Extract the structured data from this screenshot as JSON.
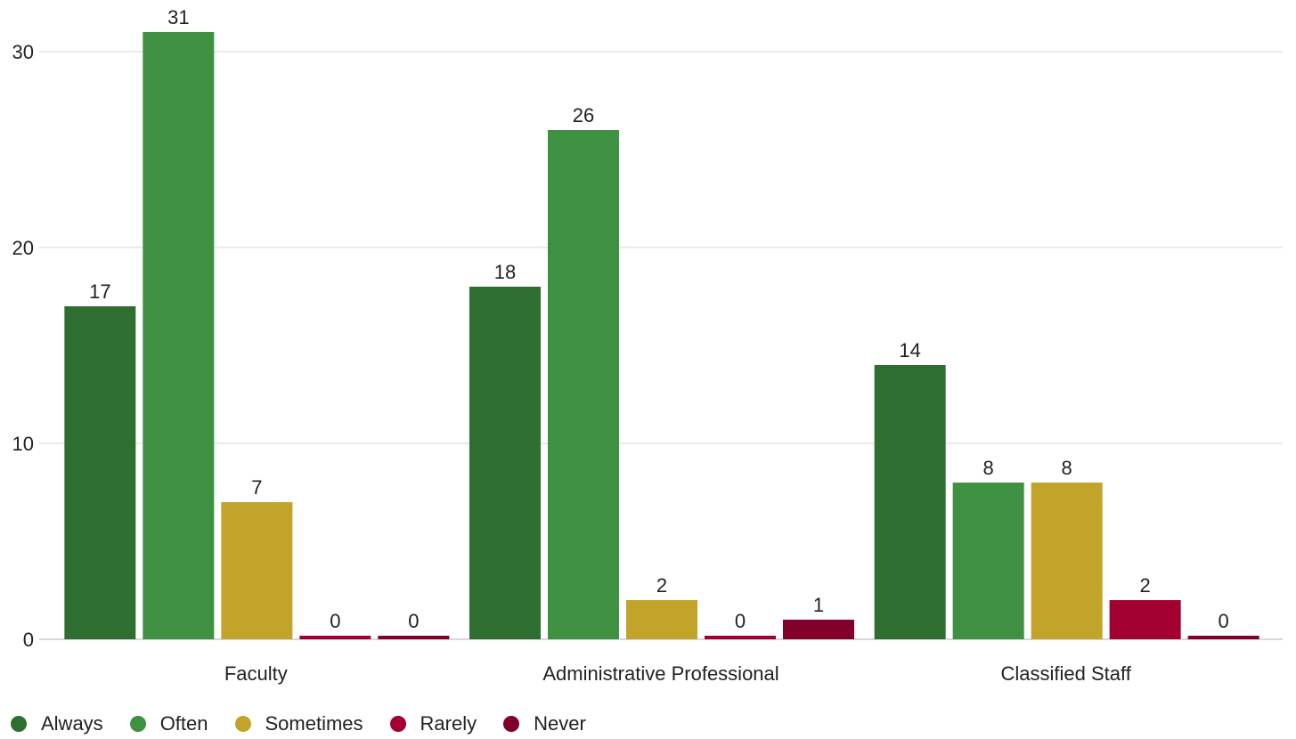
{
  "chart_data": {
    "type": "bar",
    "title": "",
    "xlabel": "",
    "ylabel": "",
    "categories": [
      "Faculty",
      "Administrative Professional",
      "Classified Staff"
    ],
    "series": [
      {
        "name": "Always",
        "color": "#2e6e31",
        "values": [
          17,
          18,
          14
        ]
      },
      {
        "name": "Often",
        "color": "#3e9140",
        "values": [
          31,
          26,
          8
        ]
      },
      {
        "name": "Sometimes",
        "color": "#c2a42a",
        "values": [
          7,
          2,
          8
        ]
      },
      {
        "name": "Rarely",
        "color": "#a10030",
        "values": [
          0,
          0,
          2
        ]
      },
      {
        "name": "Never",
        "color": "#820029",
        "values": [
          0,
          1,
          0
        ]
      }
    ],
    "ylim": [
      0,
      31
    ],
    "yticks": [
      0,
      10,
      20,
      30
    ],
    "grid": true,
    "legend": "bottom-left",
    "data_labels": true
  }
}
